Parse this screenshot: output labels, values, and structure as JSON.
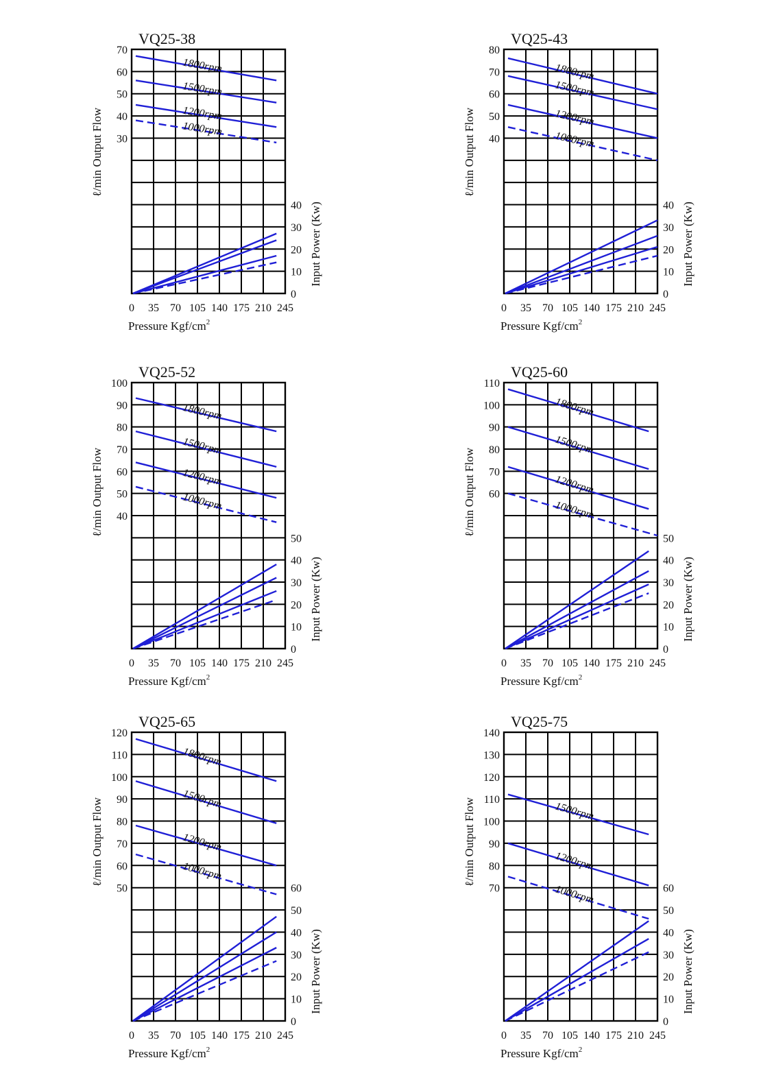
{
  "theme": {
    "series_color": "#1f1fd6",
    "grid_color": "#000000",
    "text_color": "#111111"
  },
  "chart_data": [
    {
      "type": "line",
      "title": "VQ25-38",
      "ylabel_left": "ℓ/min Output Flow",
      "ylabel_right": "Input Power (Kw)",
      "xlabel": "Pressure Kgf/cm",
      "xlabel_sup": "2",
      "x_ticks": [
        "0",
        "35",
        "70",
        "105",
        "140",
        "175",
        "210",
        "245"
      ],
      "xlim": [
        0,
        245
      ],
      "flow_ticks": [
        30,
        40,
        50,
        60,
        70
      ],
      "power_ticks": [
        0,
        10,
        20,
        30,
        40
      ],
      "flow_series": [
        {
          "name": "1800rpm",
          "style": "solid",
          "x": [
            0,
            231
          ],
          "y": [
            67,
            56
          ]
        },
        {
          "name": "1500rpm",
          "style": "solid",
          "x": [
            0,
            231
          ],
          "y": [
            56,
            46
          ]
        },
        {
          "name": "1200rpm",
          "style": "solid",
          "x": [
            0,
            231
          ],
          "y": [
            45,
            35
          ]
        },
        {
          "name": "1000rpm",
          "style": "dashed",
          "x": [
            0,
            231
          ],
          "y": [
            38,
            28
          ]
        }
      ],
      "power_series": [
        {
          "name": "1800rpm",
          "style": "solid",
          "x": [
            0,
            231
          ],
          "y": [
            0,
            27
          ]
        },
        {
          "name": "1500rpm",
          "style": "solid",
          "x": [
            0,
            231
          ],
          "y": [
            0,
            24
          ]
        },
        {
          "name": "1200rpm",
          "style": "solid",
          "x": [
            0,
            231
          ],
          "y": [
            0,
            17
          ]
        },
        {
          "name": "1000rpm",
          "style": "dashed",
          "x": [
            0,
            231
          ],
          "y": [
            0,
            14
          ]
        }
      ]
    },
    {
      "type": "line",
      "title": "VQ25-43",
      "ylabel_left": "ℓ/min Output Flow",
      "ylabel_right": "Input Power (Kw)",
      "xlabel": "Pressure Kgf/cm",
      "xlabel_sup": "2",
      "x_ticks": [
        "0",
        "35",
        "70",
        "105",
        "140",
        "175",
        "210",
        "245"
      ],
      "xlim": [
        0,
        245
      ],
      "flow_ticks": [
        40,
        50,
        60,
        70,
        80
      ],
      "power_ticks": [
        0,
        10,
        20,
        30,
        40
      ],
      "flow_series": [
        {
          "name": "1800rpm",
          "style": "solid",
          "x": [
            0,
            245
          ],
          "y": [
            76,
            60
          ]
        },
        {
          "name": "1500rpm",
          "style": "solid",
          "x": [
            0,
            245
          ],
          "y": [
            68,
            53
          ]
        },
        {
          "name": "1200rpm",
          "style": "solid",
          "x": [
            0,
            245
          ],
          "y": [
            55,
            40
          ]
        },
        {
          "name": "1000rpm",
          "style": "dashed",
          "x": [
            0,
            245
          ],
          "y": [
            45,
            30
          ]
        }
      ],
      "power_series": [
        {
          "name": "1800rpm",
          "style": "solid",
          "x": [
            0,
            245
          ],
          "y": [
            0,
            33
          ]
        },
        {
          "name": "1500rpm",
          "style": "solid",
          "x": [
            0,
            245
          ],
          "y": [
            0,
            26
          ]
        },
        {
          "name": "1200rpm",
          "style": "solid",
          "x": [
            0,
            245
          ],
          "y": [
            0,
            21
          ]
        },
        {
          "name": "1000rpm",
          "style": "dashed",
          "x": [
            0,
            245
          ],
          "y": [
            0,
            17
          ]
        }
      ]
    },
    {
      "type": "line",
      "title": "VQ25-52",
      "ylabel_left": "ℓ/min Output Flow",
      "ylabel_right": "Input Power (Kw)",
      "xlabel": "Pressure Kgf/cm",
      "xlabel_sup": "2",
      "x_ticks": [
        "0",
        "35",
        "70",
        "105",
        "140",
        "175",
        "210",
        "245"
      ],
      "xlim": [
        0,
        245
      ],
      "flow_ticks": [
        40,
        50,
        60,
        70,
        80,
        90,
        100
      ],
      "power_ticks": [
        0,
        10,
        20,
        30,
        40,
        50
      ],
      "flow_series": [
        {
          "name": "1800rpm",
          "style": "solid",
          "x": [
            0,
            231
          ],
          "y": [
            93,
            78
          ]
        },
        {
          "name": "1500rpm",
          "style": "solid",
          "x": [
            0,
            231
          ],
          "y": [
            78,
            62
          ]
        },
        {
          "name": "1200rpm",
          "style": "solid",
          "x": [
            0,
            231
          ],
          "y": [
            64,
            48
          ]
        },
        {
          "name": "1000rpm",
          "style": "dashed",
          "x": [
            0,
            231
          ],
          "y": [
            53,
            37
          ]
        }
      ],
      "power_series": [
        {
          "name": "1800rpm",
          "style": "solid",
          "x": [
            0,
            231
          ],
          "y": [
            0,
            38
          ]
        },
        {
          "name": "1500rpm",
          "style": "solid",
          "x": [
            0,
            231
          ],
          "y": [
            0,
            32
          ]
        },
        {
          "name": "1200rpm",
          "style": "solid",
          "x": [
            0,
            231
          ],
          "y": [
            0,
            26
          ]
        },
        {
          "name": "1000rpm",
          "style": "dashed",
          "x": [
            0,
            231
          ],
          "y": [
            0,
            22
          ]
        }
      ]
    },
    {
      "type": "line",
      "title": "VQ25-60",
      "ylabel_left": "ℓ/min Output Flow",
      "ylabel_right": "Input Power (Kw)",
      "xlabel": "Pressure Kgf/cm",
      "xlabel_sup": "2",
      "x_ticks": [
        "0",
        "35",
        "70",
        "105",
        "140",
        "175",
        "210",
        "245"
      ],
      "xlim": [
        0,
        245
      ],
      "flow_ticks": [
        60,
        70,
        80,
        90,
        100,
        110
      ],
      "power_ticks": [
        0,
        10,
        20,
        30,
        40,
        50
      ],
      "flow_series": [
        {
          "name": "1800rpm",
          "style": "solid",
          "x": [
            0,
            231
          ],
          "y": [
            107,
            88
          ]
        },
        {
          "name": "1500rpm",
          "style": "solid",
          "x": [
            0,
            231
          ],
          "y": [
            90,
            71
          ]
        },
        {
          "name": "1200rpm",
          "style": "solid",
          "x": [
            0,
            231
          ],
          "y": [
            72,
            53
          ]
        },
        {
          "name": "1000rpm",
          "style": "dashed",
          "x": [
            0,
            245
          ],
          "y": [
            60,
            41
          ]
        }
      ],
      "power_series": [
        {
          "name": "1800rpm",
          "style": "solid",
          "x": [
            0,
            231
          ],
          "y": [
            0,
            44
          ]
        },
        {
          "name": "1500rpm",
          "style": "solid",
          "x": [
            0,
            231
          ],
          "y": [
            0,
            35
          ]
        },
        {
          "name": "1200rpm",
          "style": "solid",
          "x": [
            0,
            231
          ],
          "y": [
            0,
            29
          ]
        },
        {
          "name": "1000rpm",
          "style": "dashed",
          "x": [
            0,
            231
          ],
          "y": [
            0,
            25
          ]
        }
      ]
    },
    {
      "type": "line",
      "title": "VQ25-65",
      "ylabel_left": "ℓ/min Output Flow",
      "ylabel_right": "Input Power (Kw)",
      "xlabel": "Pressure Kgf/cm",
      "xlabel_sup": "2",
      "x_ticks": [
        "0",
        "35",
        "70",
        "105",
        "140",
        "175",
        "210",
        "245"
      ],
      "xlim": [
        0,
        245
      ],
      "flow_ticks": [
        50,
        60,
        70,
        80,
        90,
        100,
        110,
        120
      ],
      "power_ticks": [
        0,
        10,
        20,
        30,
        40,
        50,
        60
      ],
      "flow_series": [
        {
          "name": "1800rpm",
          "style": "solid",
          "x": [
            0,
            231
          ],
          "y": [
            117,
            98
          ]
        },
        {
          "name": "1500rpm",
          "style": "solid",
          "x": [
            0,
            231
          ],
          "y": [
            98,
            79
          ]
        },
        {
          "name": "1200rpm",
          "style": "solid",
          "x": [
            0,
            231
          ],
          "y": [
            78,
            60
          ]
        },
        {
          "name": "1000rpm",
          "style": "dashed",
          "x": [
            0,
            231
          ],
          "y": [
            65,
            47
          ]
        }
      ],
      "power_series": [
        {
          "name": "1800rpm",
          "style": "solid",
          "x": [
            0,
            231
          ],
          "y": [
            0,
            47
          ]
        },
        {
          "name": "1500rpm",
          "style": "solid",
          "x": [
            0,
            231
          ],
          "y": [
            0,
            40
          ]
        },
        {
          "name": "1200rpm",
          "style": "solid",
          "x": [
            0,
            231
          ],
          "y": [
            0,
            33
          ]
        },
        {
          "name": "1000rpm",
          "style": "dashed",
          "x": [
            0,
            231
          ],
          "y": [
            0,
            27
          ]
        }
      ]
    },
    {
      "type": "line",
      "title": "VQ25-75",
      "ylabel_left": "ℓ/min Output Flow",
      "ylabel_right": "Input Power (Kw)",
      "xlabel": "Pressure Kgf/cm",
      "xlabel_sup": "2",
      "x_ticks": [
        "0",
        "35",
        "70",
        "105",
        "140",
        "175",
        "210",
        "245"
      ],
      "xlim": [
        0,
        245
      ],
      "flow_ticks": [
        70,
        80,
        90,
        100,
        110,
        120,
        130,
        140
      ],
      "power_ticks": [
        0,
        10,
        20,
        30,
        40,
        50,
        60
      ],
      "flow_series": [
        {
          "name": "1500rpm",
          "style": "solid",
          "x": [
            0,
            231
          ],
          "y": [
            112,
            94
          ]
        },
        {
          "name": "1200rpm",
          "style": "solid",
          "x": [
            0,
            231
          ],
          "y": [
            90,
            71
          ]
        },
        {
          "name": "1000rpm",
          "style": "dashed",
          "x": [
            0,
            231
          ],
          "y": [
            75,
            56
          ]
        }
      ],
      "power_series": [
        {
          "name": "1500rpm",
          "style": "solid",
          "x": [
            0,
            231
          ],
          "y": [
            0,
            45
          ]
        },
        {
          "name": "1200rpm",
          "style": "solid",
          "x": [
            0,
            231
          ],
          "y": [
            0,
            37
          ]
        },
        {
          "name": "1000rpm",
          "style": "dashed",
          "x": [
            0,
            231
          ],
          "y": [
            0,
            31
          ]
        }
      ]
    }
  ]
}
